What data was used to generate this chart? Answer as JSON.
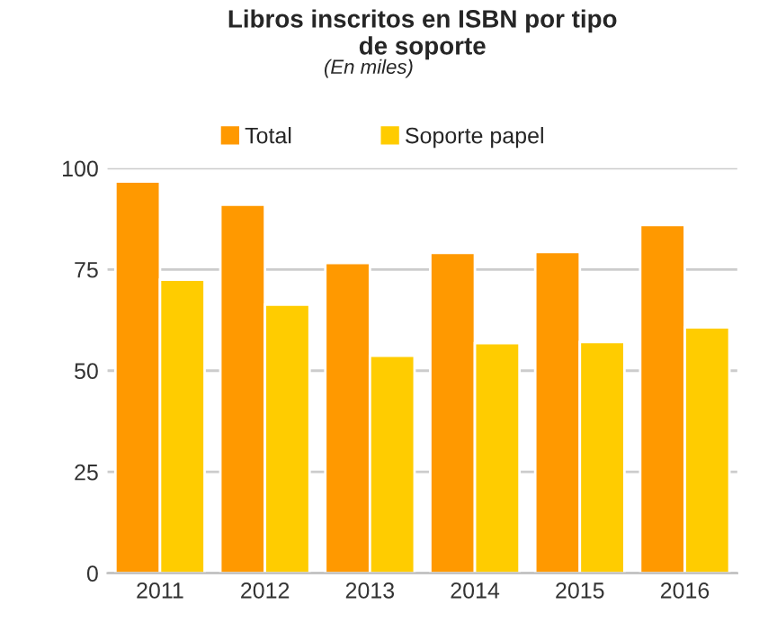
{
  "chart_data": {
    "type": "bar",
    "title": "Libros inscritos en ISBN por tipo\nde soporte",
    "subtitle": "(En miles)",
    "categories": [
      "2011",
      "2012",
      "2013",
      "2014",
      "2015",
      "2016"
    ],
    "series": [
      {
        "name": "Total",
        "color": "#ff9900",
        "values": [
          96.7,
          91,
          76.6,
          79.1,
          79.3,
          86
        ]
      },
      {
        "name": "Soporte papel",
        "color": "#ffcc00",
        "values": [
          72.5,
          66.3,
          53.7,
          56.8,
          57.1,
          60.7
        ]
      }
    ],
    "ylim": [
      0,
      100
    ],
    "yticks": [
      0,
      25,
      50,
      75,
      100
    ],
    "grid": "y",
    "legend": "top"
  }
}
